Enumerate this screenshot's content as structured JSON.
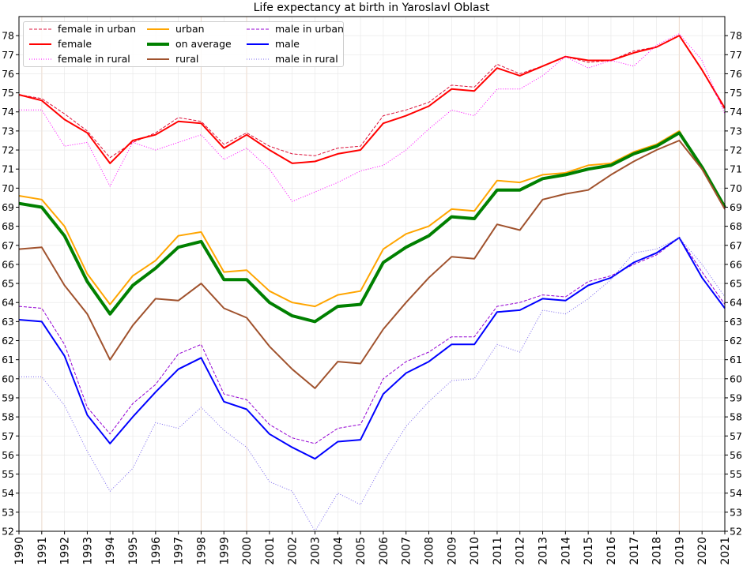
{
  "chart_data": {
    "type": "line",
    "title": "Life expectancy at birth in Yaroslavl Oblast",
    "xlabel": "",
    "ylabel": "",
    "x": [
      1990,
      1991,
      1992,
      1993,
      1994,
      1995,
      1996,
      1997,
      1998,
      1999,
      2000,
      2001,
      2002,
      2003,
      2004,
      2005,
      2006,
      2007,
      2008,
      2009,
      2010,
      2011,
      2012,
      2013,
      2014,
      2015,
      2016,
      2017,
      2018,
      2019,
      2020,
      2021
    ],
    "xlim": [
      1990,
      2021
    ],
    "ylim": [
      52,
      79
    ],
    "yticks": [
      52,
      53,
      54,
      55,
      56,
      57,
      58,
      59,
      60,
      61,
      62,
      63,
      64,
      65,
      66,
      67,
      68,
      69,
      70,
      71,
      72,
      73,
      74,
      75,
      76,
      77,
      78
    ],
    "highlight_years": [
      1991,
      1998,
      2000,
      2019
    ],
    "grid": true,
    "legend_position": "top-left",
    "series": [
      {
        "name": "female in urban",
        "color": "#dc143c",
        "style": "dashed",
        "width": 1,
        "values": [
          74.9,
          74.7,
          73.9,
          73.0,
          71.6,
          72.4,
          72.9,
          73.7,
          73.5,
          72.3,
          72.9,
          72.2,
          71.8,
          71.7,
          72.1,
          72.2,
          73.8,
          74.1,
          74.5,
          75.4,
          75.3,
          76.5,
          76.0,
          76.4,
          76.9,
          76.6,
          76.7,
          77.2,
          77.4,
          78.0,
          76.2,
          74.1
        ]
      },
      {
        "name": "female",
        "color": "#ff0000",
        "style": "solid",
        "width": 2,
        "values": [
          74.9,
          74.6,
          73.6,
          72.9,
          71.3,
          72.5,
          72.8,
          73.5,
          73.4,
          72.1,
          72.8,
          72.0,
          71.3,
          71.4,
          71.8,
          72.0,
          73.4,
          73.8,
          74.3,
          75.2,
          75.1,
          76.3,
          75.9,
          76.4,
          76.9,
          76.7,
          76.7,
          77.1,
          77.4,
          78.0,
          76.2,
          74.2
        ]
      },
      {
        "name": "female in rural",
        "color": "#ff00ff",
        "style": "dotted",
        "width": 1,
        "values": [
          74.1,
          74.1,
          72.2,
          72.4,
          70.1,
          72.4,
          72.0,
          72.4,
          72.8,
          71.5,
          72.1,
          71.0,
          69.3,
          69.8,
          70.3,
          70.9,
          71.2,
          72.0,
          73.1,
          74.1,
          73.8,
          75.2,
          75.2,
          75.9,
          76.9,
          76.3,
          76.7,
          76.4,
          77.5,
          78.1,
          76.7,
          73.9
        ]
      },
      {
        "name": "urban",
        "color": "#ffa500",
        "style": "solid",
        "width": 2,
        "values": [
          69.6,
          69.4,
          68.0,
          65.5,
          63.9,
          65.4,
          66.2,
          67.5,
          67.7,
          65.6,
          65.7,
          64.6,
          64.0,
          63.8,
          64.4,
          64.6,
          66.8,
          67.6,
          68.0,
          68.9,
          68.8,
          70.4,
          70.3,
          70.7,
          70.8,
          71.2,
          71.3,
          71.9,
          72.3,
          73.0,
          71.0,
          69.1
        ]
      },
      {
        "name": "on average",
        "color": "#008000",
        "style": "solid",
        "width": 4,
        "values": [
          69.2,
          69.0,
          67.5,
          65.1,
          63.4,
          64.9,
          65.8,
          66.9,
          67.2,
          65.2,
          65.2,
          64.0,
          63.3,
          63.0,
          63.8,
          63.9,
          66.1,
          66.9,
          67.5,
          68.5,
          68.4,
          69.9,
          69.9,
          70.5,
          70.7,
          71.0,
          71.2,
          71.8,
          72.2,
          72.9,
          71.1,
          69.0
        ]
      },
      {
        "name": "rural",
        "color": "#a0522d",
        "style": "solid",
        "width": 2,
        "values": [
          66.8,
          66.9,
          64.9,
          63.4,
          61.0,
          62.8,
          64.2,
          64.1,
          65.0,
          63.7,
          63.2,
          61.7,
          60.5,
          59.5,
          60.9,
          60.8,
          62.6,
          64.0,
          65.3,
          66.4,
          66.3,
          68.1,
          67.8,
          69.4,
          69.7,
          69.9,
          70.7,
          71.4,
          72.0,
          72.5,
          71.0,
          68.9
        ]
      },
      {
        "name": "male in urban",
        "color": "#9400d3",
        "style": "dashed",
        "width": 1,
        "values": [
          63.8,
          63.7,
          61.8,
          58.5,
          57.1,
          58.7,
          59.7,
          61.3,
          61.8,
          59.2,
          58.9,
          57.6,
          56.9,
          56.6,
          57.4,
          57.6,
          60.0,
          60.9,
          61.4,
          62.2,
          62.2,
          63.8,
          64.0,
          64.4,
          64.3,
          65.1,
          65.4,
          66.0,
          66.5,
          67.4,
          65.6,
          63.9
        ]
      },
      {
        "name": "male",
        "color": "#0000ff",
        "style": "solid",
        "width": 2,
        "values": [
          63.1,
          63.0,
          61.2,
          58.1,
          56.6,
          58.0,
          59.3,
          60.5,
          61.1,
          58.8,
          58.4,
          57.1,
          56.4,
          55.8,
          56.7,
          56.8,
          59.2,
          60.3,
          60.9,
          61.8,
          61.8,
          63.5,
          63.6,
          64.2,
          64.1,
          64.9,
          65.3,
          66.1,
          66.6,
          67.4,
          65.3,
          63.7
        ]
      },
      {
        "name": "male in rural",
        "color": "#7b68ee",
        "style": "dotted",
        "width": 1,
        "values": [
          60.1,
          60.1,
          58.6,
          56.2,
          54.1,
          55.3,
          57.7,
          57.4,
          58.5,
          57.3,
          56.4,
          54.6,
          54.1,
          52.0,
          54.0,
          53.4,
          55.6,
          57.5,
          58.8,
          59.9,
          60.0,
          61.8,
          61.4,
          63.6,
          63.4,
          64.2,
          65.2,
          66.6,
          66.8,
          67.4,
          66.0,
          64.3
        ]
      }
    ]
  }
}
